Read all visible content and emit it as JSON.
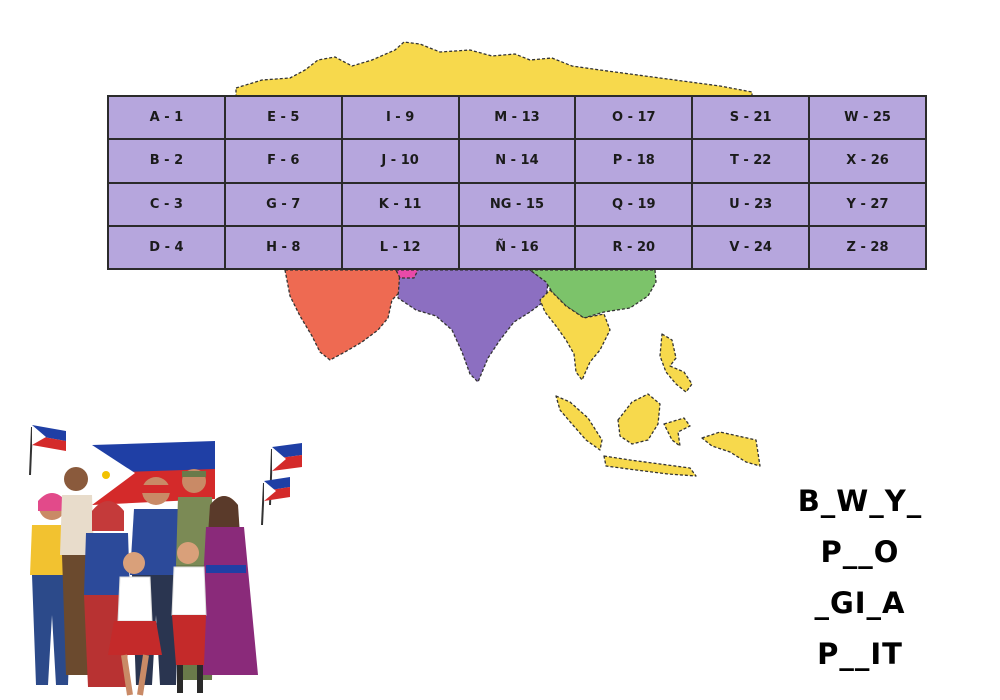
{
  "letter_table": {
    "rows": [
      [
        "A - 1",
        "E - 5",
        "I - 9",
        "M - 13",
        "O - 17",
        "S - 21",
        "W - 25"
      ],
      [
        "B - 2",
        "F - 6",
        "J - 10",
        "N - 14",
        "P - 18",
        "T - 22",
        "X - 26"
      ],
      [
        "C - 3",
        "G - 7",
        "K - 11",
        "NG - 15",
        "Q - 19",
        "U - 23",
        "Y - 27"
      ],
      [
        "D - 4",
        "H - 8",
        "L - 12",
        "Ñ - 16",
        "R - 20",
        "V - 24",
        "Z - 28"
      ]
    ]
  },
  "puzzles": [
    "B_W_Y_",
    "P__O",
    "_GI_A",
    "P__IT"
  ],
  "colors": {
    "table_fill": "#b6a6dd",
    "map_yellow": "#f7d94c",
    "map_orange": "#ee6a52",
    "map_purple": "#8c6fc1",
    "map_green": "#7cc36a",
    "flag_blue": "#1f3fa5",
    "flag_red": "#d42a2a"
  }
}
